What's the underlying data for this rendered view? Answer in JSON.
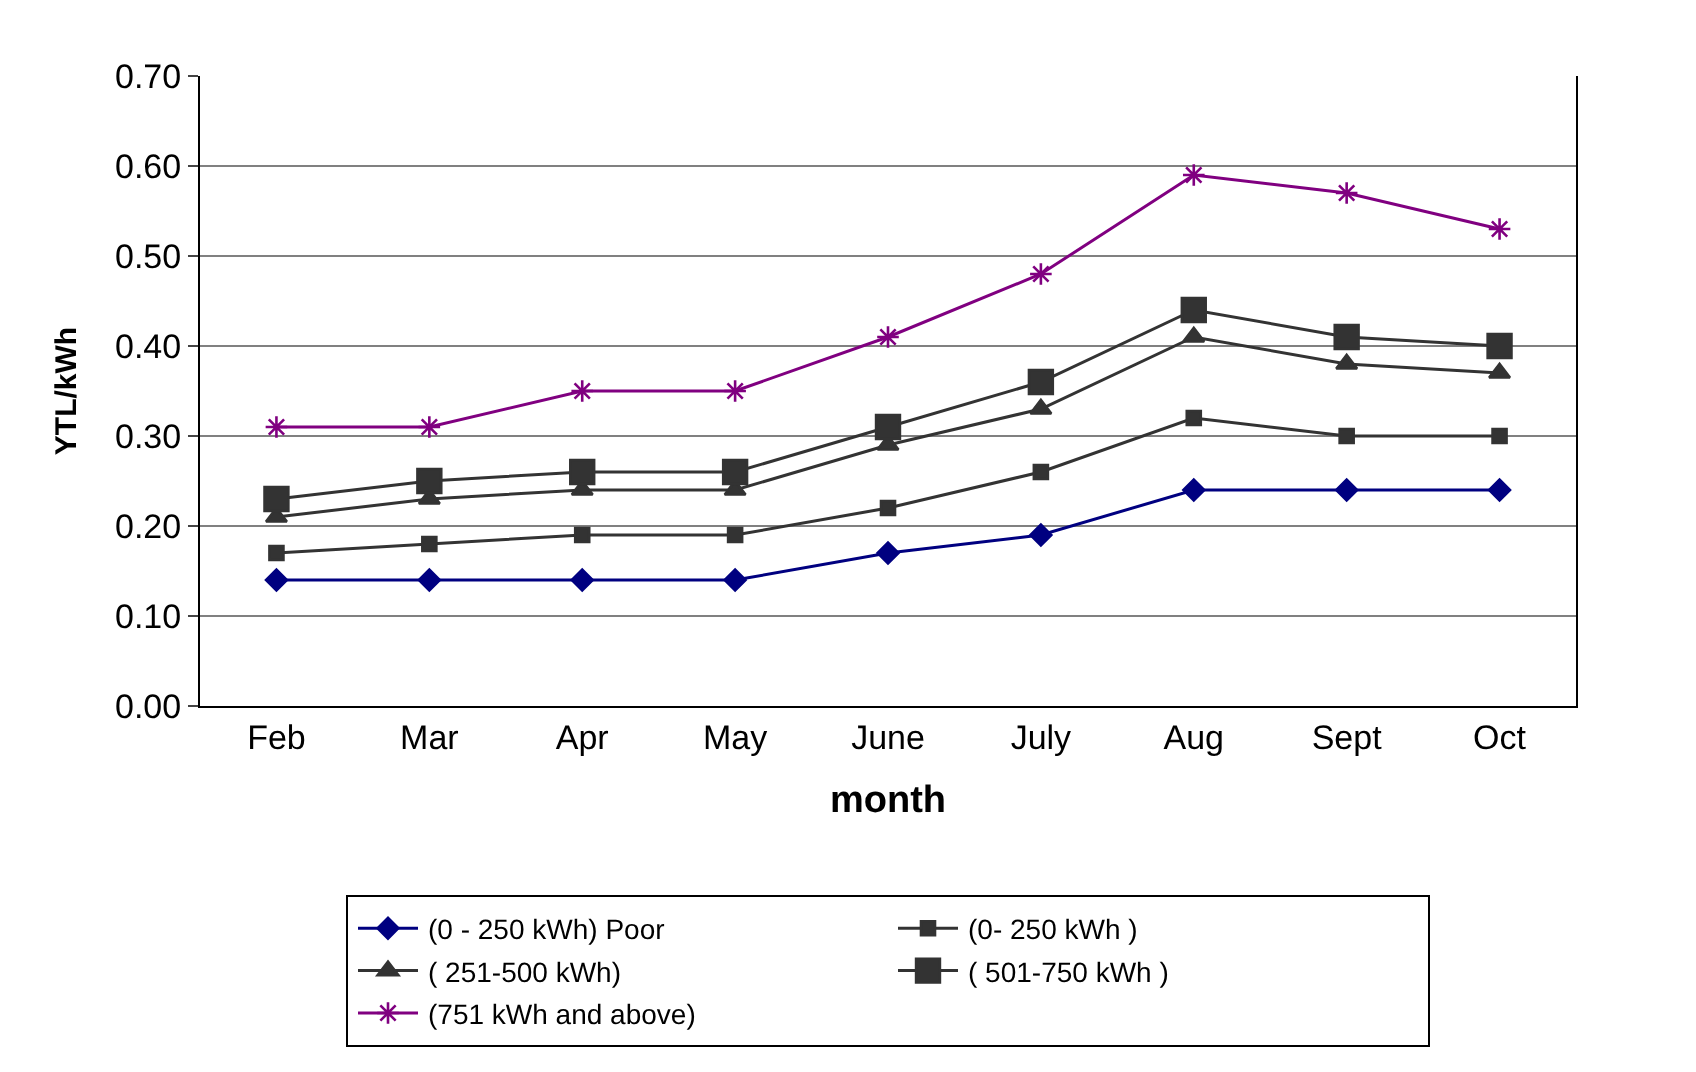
{
  "chart_data": {
    "type": "line",
    "xlabel": "month",
    "ylabel": "YTL/kWh",
    "categories": [
      "Feb",
      "Mar",
      "Apr",
      "May",
      "June",
      "July",
      "Aug",
      "Sept",
      "Oct"
    ],
    "ylim": [
      0,
      0.7
    ],
    "yticks": [
      {
        "value": 0,
        "label": "0.00"
      },
      {
        "value": 0.1,
        "label": "0.10"
      },
      {
        "value": 0.2,
        "label": "0.20"
      },
      {
        "value": 0.3,
        "label": "0.30"
      },
      {
        "value": 0.4,
        "label": "0.40"
      },
      {
        "value": 0.5,
        "label": "0.50"
      },
      {
        "value": 0.6,
        "label": "0.60"
      },
      {
        "value": 0.7,
        "label": "0.70"
      }
    ],
    "grid": "y",
    "legend": "bottom",
    "series": [
      {
        "name": "(0 - 250 kWh) Poor",
        "color": "#000080",
        "marker": "diamond",
        "values": [
          0.14,
          0.14,
          0.14,
          0.14,
          0.17,
          0.19,
          0.24,
          0.24,
          0.24
        ]
      },
      {
        "name": "(0- 250 kWh )",
        "color": "#333333",
        "marker": "square",
        "values": [
          0.17,
          0.18,
          0.19,
          0.19,
          0.22,
          0.26,
          0.32,
          0.3,
          0.3
        ]
      },
      {
        "name": "( 251-500 kWh)",
        "color": "#333333",
        "marker": "triangle",
        "values": [
          0.21,
          0.23,
          0.24,
          0.24,
          0.29,
          0.33,
          0.41,
          0.38,
          0.37
        ]
      },
      {
        "name": "( 501-750 kWh )",
        "color": "#333333",
        "marker": "square",
        "values": [
          0.23,
          0.25,
          0.26,
          0.26,
          0.31,
          0.36,
          0.44,
          0.41,
          0.4
        ]
      },
      {
        "name": "(751 kWh and above)",
        "color": "#800080",
        "marker": "cross",
        "values": [
          0.31,
          0.31,
          0.35,
          0.35,
          0.41,
          0.48,
          0.59,
          0.57,
          0.53
        ]
      }
    ]
  }
}
